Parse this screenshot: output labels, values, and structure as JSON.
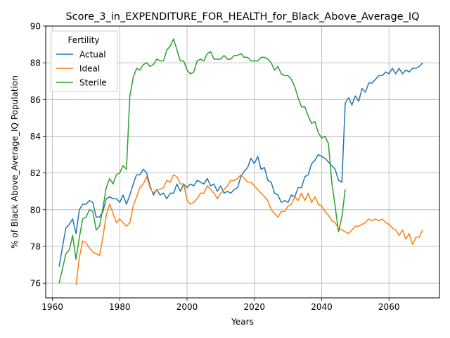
{
  "chart_data": {
    "type": "line",
    "title": "Score_3_in_EXPENDITURE_FOR_HEALTH_for_Black_Above_Average_IQ",
    "xlabel": "Years",
    "ylabel": "% of Black Above_Average_IQ Population",
    "xlim": [
      1958,
      2075
    ],
    "ylim": [
      75.2,
      90
    ],
    "xticks": [
      1960,
      1980,
      2000,
      2020,
      2040,
      2060
    ],
    "yticks": [
      76,
      78,
      80,
      82,
      84,
      86,
      88,
      90
    ],
    "grid": true,
    "legend": {
      "title": "Fertility",
      "placement": "upper-left"
    },
    "series": [
      {
        "name": "Actual",
        "color": "#1f77b4",
        "x": [
          1962,
          1963,
          1964,
          1965,
          1966,
          1967,
          1968,
          1969,
          1970,
          1971,
          1972,
          1973,
          1974,
          1975,
          1976,
          1977,
          1978,
          1979,
          1980,
          1981,
          1982,
          1983,
          1984,
          1985,
          1986,
          1987,
          1988,
          1989,
          1990,
          1991,
          1992,
          1993,
          1994,
          1995,
          1996,
          1997,
          1998,
          1999,
          2000,
          2001,
          2002,
          2003,
          2004,
          2005,
          2006,
          2007,
          2008,
          2009,
          2010,
          2011,
          2012,
          2013,
          2014,
          2015,
          2016,
          2017,
          2018,
          2019,
          2020,
          2021,
          2022,
          2023,
          2024,
          2025,
          2026,
          2027,
          2028,
          2029,
          2030,
          2031,
          2032,
          2033,
          2034,
          2035,
          2036,
          2037,
          2038,
          2039,
          2040,
          2041,
          2042,
          2043,
          2044,
          2045,
          2046,
          2047,
          2048,
          2049,
          2050,
          2051,
          2052,
          2053,
          2054,
          2055,
          2056,
          2057,
          2058,
          2059,
          2060,
          2061,
          2062,
          2063,
          2064,
          2065,
          2066,
          2067,
          2068,
          2069,
          2070
        ],
        "values": [
          76.9,
          78.0,
          79.0,
          79.2,
          79.5,
          78.7,
          80.0,
          80.3,
          80.3,
          80.5,
          80.4,
          79.6,
          79.6,
          79.9,
          80.6,
          80.7,
          80.6,
          80.6,
          80.4,
          80.8,
          80.3,
          80.8,
          81.4,
          81.9,
          81.9,
          82.2,
          82.0,
          81.3,
          80.8,
          81.1,
          80.8,
          80.9,
          80.6,
          80.9,
          80.9,
          81.4,
          81.0,
          81.4,
          81.2,
          81.4,
          81.3,
          81.6,
          81.5,
          81.4,
          81.7,
          81.3,
          81.4,
          81.0,
          81.3,
          80.9,
          81.0,
          80.9,
          81.1,
          81.2,
          81.8,
          82.1,
          82.3,
          82.8,
          82.5,
          82.9,
          82.2,
          82.3,
          81.6,
          81.5,
          80.9,
          80.8,
          80.4,
          80.5,
          80.4,
          80.8,
          80.7,
          81.2,
          81.2,
          81.8,
          81.9,
          82.5,
          82.7,
          83.0,
          82.9,
          82.8,
          82.6,
          82.4,
          82.2,
          81.6,
          81.5,
          85.8,
          86.1,
          85.7,
          86.2,
          85.9,
          86.6,
          86.4,
          86.9,
          86.9,
          87.1,
          87.3,
          87.3,
          87.5,
          87.4,
          87.7,
          87.4,
          87.7,
          87.4,
          87.6,
          87.5,
          87.7,
          87.7,
          87.8,
          88.0
        ]
      },
      {
        "name": "Ideal",
        "color": "#ff7f0e",
        "x": [
          1967,
          1968,
          1969,
          1970,
          1971,
          1972,
          1973,
          1974,
          1975,
          1976,
          1977,
          1978,
          1979,
          1980,
          1981,
          1982,
          1983,
          1984,
          1985,
          1986,
          1987,
          1988,
          1989,
          1990,
          1991,
          1992,
          1993,
          1994,
          1995,
          1996,
          1997,
          1998,
          1999,
          2000,
          2001,
          2002,
          2003,
          2004,
          2005,
          2006,
          2007,
          2008,
          2009,
          2010,
          2011,
          2012,
          2013,
          2014,
          2015,
          2016,
          2017,
          2018,
          2019,
          2020,
          2021,
          2022,
          2023,
          2024,
          2025,
          2026,
          2027,
          2028,
          2029,
          2030,
          2031,
          2032,
          2033,
          2034,
          2035,
          2036,
          2037,
          2038,
          2039,
          2040,
          2041,
          2042,
          2043,
          2044,
          2045,
          2046,
          2047,
          2048,
          2049,
          2050,
          2051,
          2052,
          2053,
          2054,
          2055,
          2056,
          2057,
          2058,
          2059,
          2060,
          2061,
          2062,
          2063,
          2064,
          2065,
          2066,
          2067,
          2068,
          2069,
          2070
        ],
        "values": [
          75.9,
          77.4,
          78.3,
          78.2,
          77.9,
          77.7,
          77.6,
          77.5,
          78.5,
          79.7,
          80.3,
          79.8,
          79.3,
          79.5,
          79.3,
          79.1,
          79.3,
          80.2,
          80.7,
          81.2,
          81.4,
          81.8,
          81.2,
          80.9,
          81.1,
          81.1,
          81.2,
          81.6,
          81.5,
          81.9,
          81.8,
          81.4,
          81.4,
          80.5,
          80.3,
          80.4,
          80.6,
          80.9,
          80.9,
          81.3,
          81.1,
          80.9,
          80.6,
          80.9,
          81.1,
          81.3,
          81.6,
          81.6,
          81.7,
          81.9,
          81.7,
          81.5,
          81.5,
          81.3,
          81.1,
          80.9,
          80.7,
          80.5,
          80.0,
          79.8,
          79.6,
          79.9,
          79.9,
          80.2,
          80.3,
          80.7,
          80.5,
          80.9,
          80.5,
          80.9,
          80.4,
          80.7,
          80.3,
          80.2,
          79.9,
          79.7,
          79.4,
          79.3,
          79.0,
          78.9,
          78.8,
          78.7,
          78.9,
          79.1,
          79.1,
          79.2,
          79.3,
          79.5,
          79.4,
          79.5,
          79.4,
          79.5,
          79.3,
          79.2,
          79.0,
          78.9,
          78.6,
          78.9,
          78.4,
          78.7,
          78.1,
          78.5,
          78.5,
          78.9
        ]
      },
      {
        "name": "Sterile",
        "color": "#2ca02c",
        "x": [
          1962,
          1963,
          1964,
          1965,
          1966,
          1967,
          1968,
          1969,
          1970,
          1971,
          1972,
          1973,
          1974,
          1975,
          1976,
          1977,
          1978,
          1979,
          1980,
          1981,
          1982,
          1983,
          1984,
          1985,
          1986,
          1987,
          1988,
          1989,
          1990,
          1991,
          1992,
          1993,
          1994,
          1995,
          1996,
          1997,
          1998,
          1999,
          2000,
          2001,
          2002,
          2003,
          2004,
          2005,
          2006,
          2007,
          2008,
          2009,
          2010,
          2011,
          2012,
          2013,
          2014,
          2015,
          2016,
          2017,
          2018,
          2019,
          2020,
          2021,
          2022,
          2023,
          2024,
          2025,
          2026,
          2027,
          2028,
          2029,
          2030,
          2031,
          2032,
          2033,
          2034,
          2035,
          2036,
          2037,
          2038,
          2039,
          2040,
          2041,
          2042,
          2043,
          2044,
          2045,
          2046,
          2047
        ],
        "values": [
          76.0,
          76.8,
          77.6,
          77.8,
          78.6,
          77.3,
          78.5,
          79.5,
          79.6,
          80.0,
          79.9,
          78.9,
          79.1,
          80.1,
          81.2,
          81.7,
          81.4,
          81.9,
          82.0,
          82.4,
          82.2,
          86.2,
          87.2,
          87.7,
          87.6,
          87.9,
          88.0,
          87.8,
          87.9,
          88.2,
          88.1,
          88.1,
          88.7,
          88.9,
          89.3,
          88.7,
          88.1,
          88.1,
          87.6,
          87.4,
          87.5,
          88.1,
          88.2,
          88.1,
          88.5,
          88.6,
          88.2,
          88.2,
          88.2,
          88.4,
          88.2,
          88.2,
          88.4,
          88.4,
          88.5,
          88.3,
          88.3,
          88.1,
          88.1,
          88.1,
          88.3,
          88.3,
          88.2,
          88.0,
          87.6,
          87.8,
          87.4,
          87.3,
          87.3,
          87.1,
          86.7,
          86.1,
          85.6,
          85.6,
          85.1,
          84.7,
          84.8,
          84.2,
          83.9,
          84.0,
          83.6,
          81.5,
          80.2,
          78.8,
          79.6,
          81.1
        ]
      }
    ]
  }
}
